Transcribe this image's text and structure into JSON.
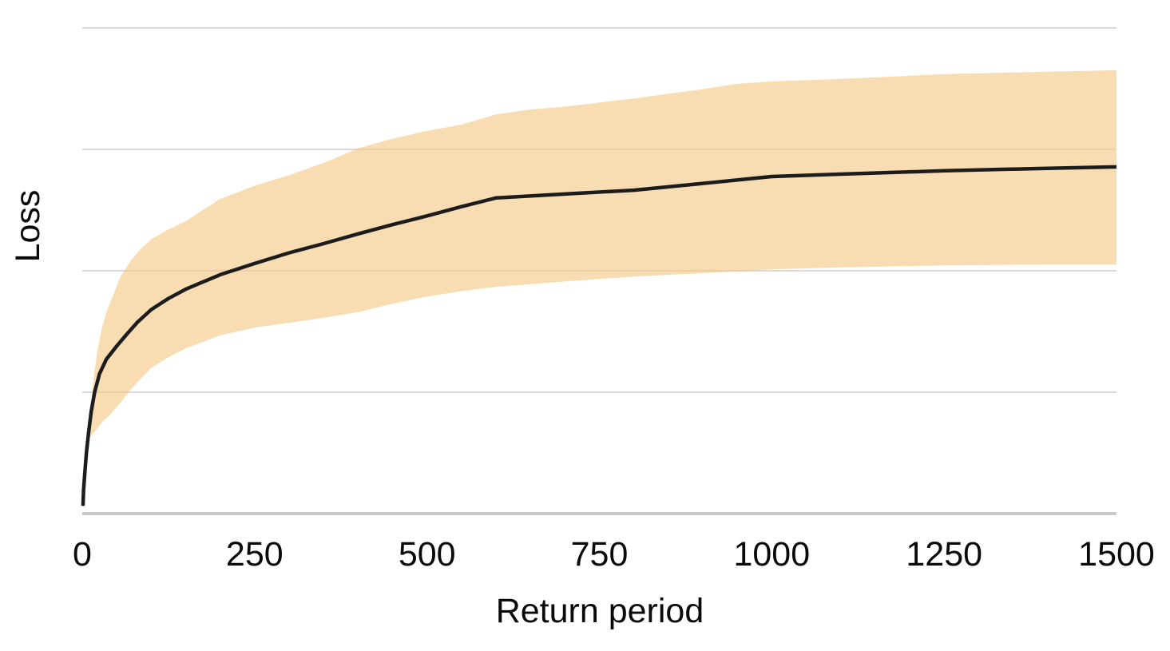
{
  "chart_data": {
    "type": "line",
    "title": "",
    "xlabel": "Return period",
    "ylabel": "Loss",
    "xlim": [
      0,
      1500
    ],
    "ylim": [
      0,
      1.06
    ],
    "x_ticks": [
      0,
      250,
      500,
      750,
      1000,
      1250,
      1500
    ],
    "y_ticks_labeled": false,
    "y_gridlines": [
      0.25,
      0.5,
      0.75,
      1.0
    ],
    "grid": "horizontal-only",
    "legend": "none",
    "loss_units": "relative (no y tick labels shown)",
    "colors": {
      "line": "#1c1c1c",
      "band_fill": "#f6c882",
      "band_opacity": 0.62,
      "gridline": "#d9d9d9",
      "axis_line": "#c9c9c9",
      "text": "#0a0a0a",
      "background": "#ffffff"
    },
    "series": [
      {
        "name": "mean-loss-curve",
        "kind": "line",
        "points": [
          [
            1,
            0.016
          ],
          [
            2,
            0.05
          ],
          [
            4,
            0.09
          ],
          [
            6,
            0.125
          ],
          [
            9,
            0.165
          ],
          [
            13,
            0.21
          ],
          [
            18,
            0.25
          ],
          [
            25,
            0.288
          ],
          [
            35,
            0.318
          ],
          [
            50,
            0.345
          ],
          [
            65,
            0.37
          ],
          [
            80,
            0.394
          ],
          [
            100,
            0.42
          ],
          [
            125,
            0.443
          ],
          [
            150,
            0.462
          ],
          [
            200,
            0.492
          ],
          [
            250,
            0.515
          ],
          [
            300,
            0.537
          ],
          [
            350,
            0.556
          ],
          [
            400,
            0.576
          ],
          [
            450,
            0.595
          ],
          [
            500,
            0.613
          ],
          [
            550,
            0.632
          ],
          [
            600,
            0.65
          ],
          [
            700,
            0.658
          ],
          [
            800,
            0.666
          ],
          [
            900,
            0.68
          ],
          [
            1000,
            0.694
          ],
          [
            1100,
            0.699
          ],
          [
            1250,
            0.706
          ],
          [
            1400,
            0.711
          ],
          [
            1500,
            0.714
          ]
        ]
      },
      {
        "name": "uncertainty-band",
        "kind": "band",
        "upper": [
          [
            8,
            0.15
          ],
          [
            10,
            0.19
          ],
          [
            13,
            0.235
          ],
          [
            17,
            0.285
          ],
          [
            22,
            0.335
          ],
          [
            28,
            0.38
          ],
          [
            35,
            0.415
          ],
          [
            45,
            0.45
          ],
          [
            55,
            0.487
          ],
          [
            70,
            0.52
          ],
          [
            85,
            0.545
          ],
          [
            100,
            0.565
          ],
          [
            125,
            0.585
          ],
          [
            150,
            0.602
          ],
          [
            200,
            0.648
          ],
          [
            250,
            0.675
          ],
          [
            300,
            0.697
          ],
          [
            350,
            0.722
          ],
          [
            400,
            0.752
          ],
          [
            450,
            0.772
          ],
          [
            500,
            0.788
          ],
          [
            550,
            0.801
          ],
          [
            600,
            0.822
          ],
          [
            650,
            0.832
          ],
          [
            700,
            0.838
          ],
          [
            800,
            0.855
          ],
          [
            900,
            0.874
          ],
          [
            950,
            0.885
          ],
          [
            1000,
            0.89
          ],
          [
            1100,
            0.895
          ],
          [
            1250,
            0.905
          ],
          [
            1400,
            0.91
          ],
          [
            1500,
            0.913
          ]
        ],
        "lower": [
          [
            8,
            0.15
          ],
          [
            12,
            0.158
          ],
          [
            20,
            0.172
          ],
          [
            30,
            0.19
          ],
          [
            40,
            0.203
          ],
          [
            55,
            0.228
          ],
          [
            70,
            0.255
          ],
          [
            85,
            0.278
          ],
          [
            100,
            0.3
          ],
          [
            125,
            0.322
          ],
          [
            150,
            0.34
          ],
          [
            200,
            0.367
          ],
          [
            250,
            0.383
          ],
          [
            300,
            0.393
          ],
          [
            350,
            0.403
          ],
          [
            400,
            0.415
          ],
          [
            450,
            0.432
          ],
          [
            500,
            0.447
          ],
          [
            550,
            0.458
          ],
          [
            600,
            0.467
          ],
          [
            700,
            0.478
          ],
          [
            800,
            0.488
          ],
          [
            900,
            0.495
          ],
          [
            1000,
            0.503
          ],
          [
            1100,
            0.507
          ],
          [
            1250,
            0.511
          ],
          [
            1400,
            0.513
          ],
          [
            1500,
            0.513
          ]
        ]
      }
    ]
  }
}
